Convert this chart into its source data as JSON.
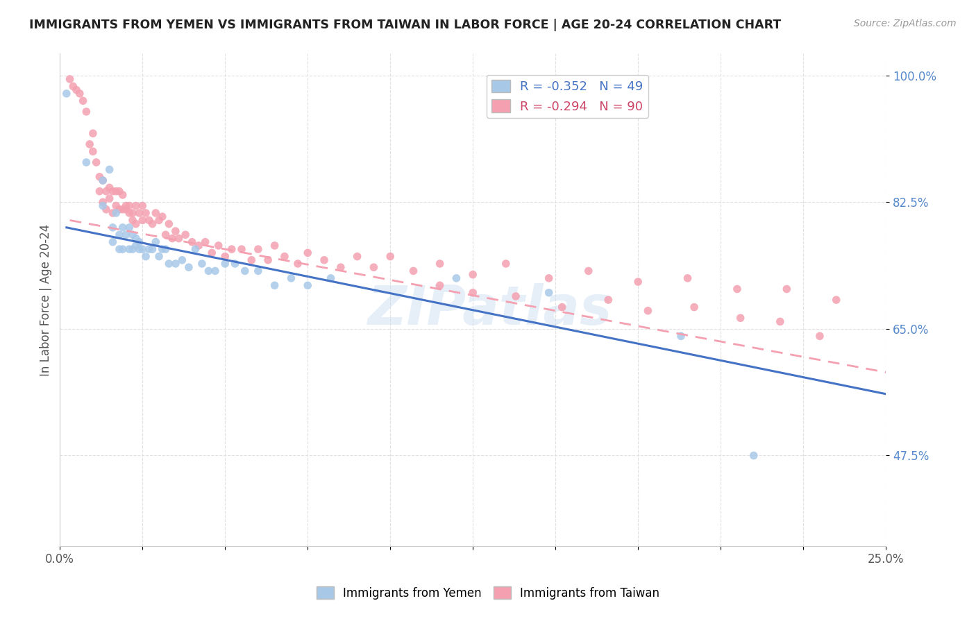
{
  "title": "IMMIGRANTS FROM YEMEN VS IMMIGRANTS FROM TAIWAN IN LABOR FORCE | AGE 20-24 CORRELATION CHART",
  "source": "Source: ZipAtlas.com",
  "ylabel": "In Labor Force | Age 20-24",
  "xlim": [
    0.0,
    0.25
  ],
  "ylim": [
    0.35,
    1.03
  ],
  "yticks": [
    0.475,
    0.65,
    0.825,
    1.0
  ],
  "ytick_labels": [
    "47.5%",
    "65.0%",
    "82.5%",
    "100.0%"
  ],
  "xtick_positions": [
    0.0,
    0.025,
    0.05,
    0.075,
    0.1,
    0.125,
    0.15,
    0.175,
    0.2,
    0.225,
    0.25
  ],
  "xtick_labels": [
    "0.0%",
    "",
    "",
    "",
    "",
    "",
    "",
    "",
    "",
    "",
    "25.0%"
  ],
  "yemen_color": "#a8c8e8",
  "taiwan_color": "#f4a0b0",
  "yemen_line_color": "#4472c4",
  "taiwan_line_color": "#f4a0b0",
  "watermark": "ZIPatlas",
  "background_color": "#ffffff",
  "grid_color": "#e0e0e0",
  "yemen_R": -0.352,
  "yemen_N": 49,
  "taiwan_R": -0.294,
  "taiwan_N": 90,
  "yemen_scatter_x": [
    0.002,
    0.008,
    0.013,
    0.013,
    0.015,
    0.016,
    0.016,
    0.017,
    0.018,
    0.018,
    0.019,
    0.019,
    0.02,
    0.021,
    0.021,
    0.022,
    0.022,
    0.023,
    0.023,
    0.024,
    0.024,
    0.025,
    0.026,
    0.027,
    0.028,
    0.029,
    0.03,
    0.031,
    0.032,
    0.033,
    0.035,
    0.037,
    0.039,
    0.041,
    0.043,
    0.045,
    0.047,
    0.05,
    0.053,
    0.056,
    0.06,
    0.065,
    0.07,
    0.075,
    0.082,
    0.12,
    0.148,
    0.188,
    0.21
  ],
  "yemen_scatter_y": [
    0.975,
    0.88,
    0.855,
    0.82,
    0.87,
    0.79,
    0.77,
    0.81,
    0.76,
    0.78,
    0.76,
    0.79,
    0.78,
    0.76,
    0.79,
    0.76,
    0.78,
    0.765,
    0.775,
    0.77,
    0.76,
    0.76,
    0.75,
    0.76,
    0.76,
    0.77,
    0.75,
    0.76,
    0.76,
    0.74,
    0.74,
    0.745,
    0.735,
    0.76,
    0.74,
    0.73,
    0.73,
    0.74,
    0.74,
    0.73,
    0.73,
    0.71,
    0.72,
    0.71,
    0.72,
    0.72,
    0.7,
    0.64,
    0.475
  ],
  "taiwan_scatter_x": [
    0.003,
    0.004,
    0.005,
    0.006,
    0.007,
    0.008,
    0.009,
    0.01,
    0.01,
    0.011,
    0.012,
    0.012,
    0.013,
    0.013,
    0.014,
    0.014,
    0.015,
    0.015,
    0.016,
    0.016,
    0.017,
    0.017,
    0.018,
    0.018,
    0.019,
    0.019,
    0.02,
    0.02,
    0.021,
    0.021,
    0.022,
    0.022,
    0.023,
    0.023,
    0.024,
    0.025,
    0.025,
    0.026,
    0.027,
    0.028,
    0.029,
    0.03,
    0.031,
    0.032,
    0.033,
    0.034,
    0.035,
    0.036,
    0.038,
    0.04,
    0.042,
    0.044,
    0.046,
    0.048,
    0.05,
    0.052,
    0.055,
    0.058,
    0.06,
    0.063,
    0.065,
    0.068,
    0.072,
    0.075,
    0.08,
    0.085,
    0.09,
    0.095,
    0.1,
    0.107,
    0.115,
    0.125,
    0.135,
    0.148,
    0.16,
    0.175,
    0.19,
    0.205,
    0.22,
    0.235,
    0.115,
    0.125,
    0.138,
    0.152,
    0.166,
    0.178,
    0.192,
    0.206,
    0.218,
    0.23
  ],
  "taiwan_scatter_y": [
    0.995,
    0.985,
    0.98,
    0.975,
    0.965,
    0.95,
    0.905,
    0.895,
    0.92,
    0.88,
    0.84,
    0.86,
    0.825,
    0.855,
    0.84,
    0.815,
    0.83,
    0.845,
    0.81,
    0.84,
    0.82,
    0.84,
    0.815,
    0.84,
    0.815,
    0.835,
    0.82,
    0.815,
    0.82,
    0.81,
    0.8,
    0.81,
    0.795,
    0.82,
    0.81,
    0.8,
    0.82,
    0.81,
    0.8,
    0.795,
    0.81,
    0.8,
    0.805,
    0.78,
    0.795,
    0.775,
    0.785,
    0.775,
    0.78,
    0.77,
    0.765,
    0.77,
    0.755,
    0.765,
    0.75,
    0.76,
    0.76,
    0.745,
    0.76,
    0.745,
    0.765,
    0.75,
    0.74,
    0.755,
    0.745,
    0.735,
    0.75,
    0.735,
    0.75,
    0.73,
    0.74,
    0.725,
    0.74,
    0.72,
    0.73,
    0.715,
    0.72,
    0.705,
    0.705,
    0.69,
    0.71,
    0.7,
    0.695,
    0.68,
    0.69,
    0.675,
    0.68,
    0.665,
    0.66,
    0.64
  ],
  "yemen_regline_x": [
    0.002,
    0.25
  ],
  "yemen_regline_y": [
    0.79,
    0.56
  ],
  "taiwan_regline_x": [
    0.003,
    0.25
  ],
  "taiwan_regline_y": [
    0.8,
    0.59
  ]
}
